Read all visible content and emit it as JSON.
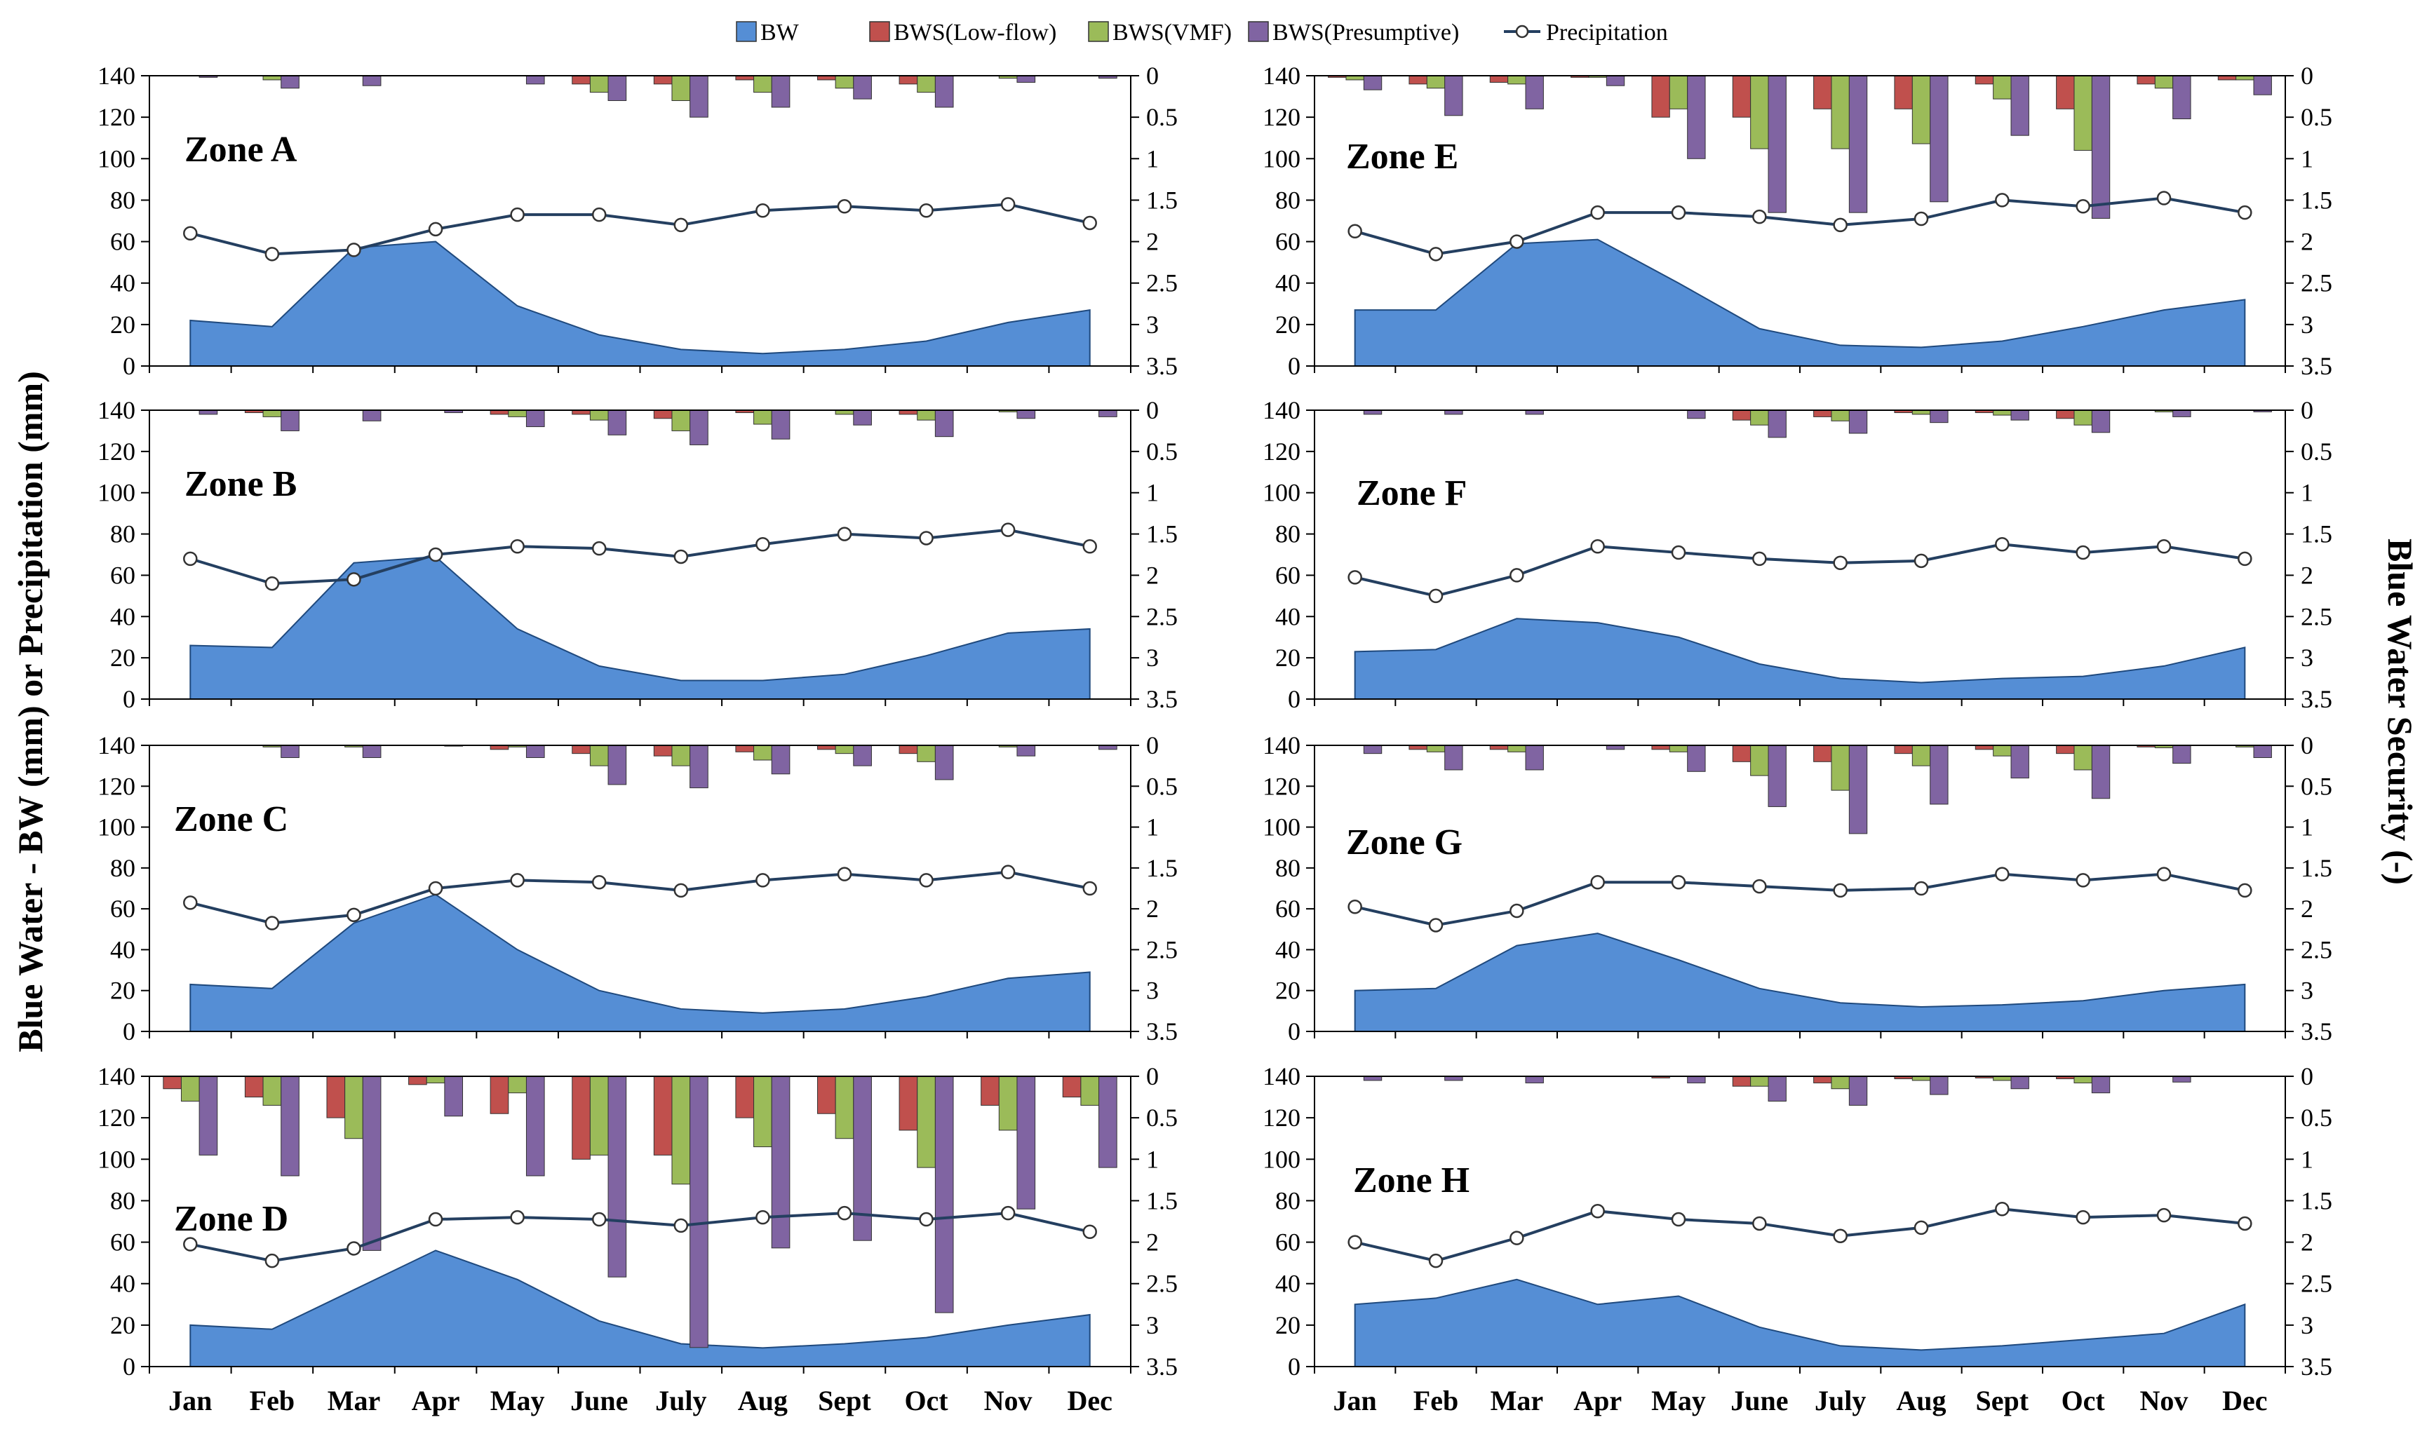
{
  "chart_data": {
    "type": "area+bar+line",
    "title": "",
    "ylabel_left": "Blue Water - BW (mm) or Precipitation (mm)",
    "ylabel_right": "Blue Water Security (-)",
    "legend": [
      "BW",
      "BWS(Low-flow)",
      "BWS(VMF)",
      "BWS(Presumptive)",
      "Precipitation"
    ],
    "colors": {
      "BW": "#558ED5",
      "BWS(Low-flow)": "#C0504D",
      "BWS(VMF)": "#9BBB59",
      "BWS(Presumptive)": "#8064A2",
      "Precipitation": "#243F60"
    },
    "months": [
      "Jan",
      "Feb",
      "Mar",
      "Apr",
      "May",
      "June",
      "July",
      "Aug",
      "Sept",
      "Oct",
      "Nov",
      "Dec"
    ],
    "ylim_left": [
      0,
      140
    ],
    "ylim_right_inverted": [
      0,
      3.5
    ],
    "left_ticks": [
      "0",
      "20",
      "40",
      "60",
      "80",
      "100",
      "120",
      "140"
    ],
    "right_ticks": [
      "0",
      "0.5",
      "1",
      "1.5",
      "2",
      "2.5",
      "3",
      "3.5"
    ],
    "panels": [
      {
        "zone": "Zone A",
        "BW": [
          22,
          19,
          57,
          60,
          29,
          15,
          8,
          6,
          8,
          12,
          21,
          27
        ],
        "Precipitation": [
          64,
          54,
          56,
          66,
          73,
          73,
          68,
          75,
          77,
          75,
          78,
          69
        ],
        "BWS_low_flow": [
          0,
          0,
          0,
          0,
          0,
          0.1,
          0.1,
          0.05,
          0.05,
          0.1,
          0,
          0
        ],
        "BWS_vmf": [
          0,
          0.05,
          0,
          0,
          0,
          0.2,
          0.3,
          0.2,
          0.15,
          0.2,
          0.03,
          0
        ],
        "BWS_presumptive": [
          0.02,
          0.15,
          0.12,
          0,
          0.1,
          0.3,
          0.5,
          0.38,
          0.28,
          0.38,
          0.08,
          0.03
        ]
      },
      {
        "zone": "Zone B",
        "BW": [
          26,
          25,
          66,
          69,
          34,
          16,
          9,
          9,
          12,
          21,
          32,
          34
        ],
        "Precipitation": [
          68,
          56,
          58,
          70,
          74,
          73,
          69,
          75,
          80,
          78,
          82,
          74
        ],
        "BWS_low_flow": [
          0,
          0.03,
          0,
          0,
          0.05,
          0.05,
          0.1,
          0.03,
          0,
          0.05,
          0,
          0
        ],
        "BWS_vmf": [
          0,
          0.08,
          0,
          0,
          0.08,
          0.12,
          0.25,
          0.17,
          0.05,
          0.12,
          0.02,
          0
        ],
        "BWS_presumptive": [
          0.05,
          0.25,
          0.13,
          0.03,
          0.2,
          0.3,
          0.42,
          0.35,
          0.18,
          0.32,
          0.1,
          0.08
        ]
      },
      {
        "zone": "Zone C",
        "BW": [
          23,
          21,
          53,
          67,
          40,
          20,
          11,
          9,
          11,
          17,
          26,
          29
        ],
        "Precipitation": [
          63,
          53,
          57,
          70,
          74,
          73,
          69,
          74,
          77,
          74,
          78,
          70
        ],
        "BWS_low_flow": [
          0,
          0,
          0,
          0,
          0.05,
          0.1,
          0.13,
          0.08,
          0.05,
          0.1,
          0,
          0
        ],
        "BWS_vmf": [
          0,
          0.02,
          0.02,
          0,
          0.02,
          0.25,
          0.25,
          0.18,
          0.1,
          0.2,
          0.02,
          0
        ],
        "BWS_presumptive": [
          0,
          0.15,
          0.15,
          0.01,
          0.15,
          0.48,
          0.52,
          0.35,
          0.25,
          0.42,
          0.13,
          0.05
        ]
      },
      {
        "zone": "Zone D",
        "BW": [
          20,
          18,
          37,
          56,
          42,
          22,
          11,
          9,
          11,
          14,
          20,
          25
        ],
        "Precipitation": [
          59,
          51,
          57,
          71,
          72,
          71,
          68,
          72,
          74,
          71,
          74,
          65
        ],
        "BWS_low_flow": [
          0.15,
          0.25,
          0.5,
          0.1,
          0.45,
          1.0,
          0.95,
          0.5,
          0.45,
          0.65,
          0.35,
          0.25
        ],
        "BWS_vmf": [
          0.3,
          0.35,
          0.75,
          0.08,
          0.2,
          0.95,
          1.3,
          0.85,
          0.75,
          1.1,
          0.65,
          0.35
        ],
        "BWS_presumptive": [
          0.95,
          1.2,
          2.1,
          0.48,
          1.2,
          2.42,
          3.27,
          2.07,
          1.98,
          2.85,
          1.6,
          1.1
        ]
      },
      {
        "zone": "Zone E",
        "BW": [
          27,
          27,
          59,
          61,
          40,
          18,
          10,
          9,
          12,
          19,
          27,
          32
        ],
        "Precipitation": [
          65,
          54,
          60,
          74,
          74,
          72,
          68,
          71,
          80,
          77,
          81,
          74
        ],
        "BWS_low_flow": [
          0.02,
          0.1,
          0.08,
          0.02,
          0.5,
          0.5,
          0.4,
          0.4,
          0.1,
          0.4,
          0.1,
          0.05
        ],
        "BWS_vmf": [
          0.05,
          0.15,
          0.1,
          0.02,
          0.4,
          0.88,
          0.88,
          0.82,
          0.28,
          0.9,
          0.15,
          0.05
        ],
        "BWS_presumptive": [
          0.17,
          0.48,
          0.4,
          0.12,
          1.0,
          1.65,
          1.65,
          1.52,
          0.72,
          1.72,
          0.52,
          0.23
        ]
      },
      {
        "zone": "Zone F",
        "BW": [
          23,
          24,
          39,
          37,
          30,
          17,
          10,
          8,
          10,
          11,
          16,
          25
        ],
        "Precipitation": [
          59,
          50,
          60,
          74,
          71,
          68,
          66,
          67,
          75,
          71,
          74,
          68
        ],
        "BWS_low_flow": [
          0,
          0,
          0,
          0,
          0,
          0.12,
          0.08,
          0.03,
          0.03,
          0.1,
          0,
          0
        ],
        "BWS_vmf": [
          0,
          0,
          0,
          0,
          0,
          0.18,
          0.13,
          0.05,
          0.06,
          0.18,
          0.02,
          0
        ],
        "BWS_presumptive": [
          0.05,
          0.05,
          0.05,
          0,
          0.1,
          0.33,
          0.28,
          0.15,
          0.12,
          0.27,
          0.08,
          0.02
        ]
      },
      {
        "zone": "Zone G",
        "BW": [
          20,
          21,
          42,
          48,
          35,
          21,
          14,
          12,
          13,
          15,
          20,
          23
        ],
        "Precipitation": [
          61,
          52,
          59,
          73,
          73,
          71,
          69,
          70,
          77,
          74,
          77,
          69
        ],
        "BWS_low_flow": [
          0,
          0.05,
          0.05,
          0,
          0.05,
          0.2,
          0.2,
          0.1,
          0.05,
          0.1,
          0.02,
          0
        ],
        "BWS_vmf": [
          0,
          0.08,
          0.08,
          0,
          0.08,
          0.37,
          0.55,
          0.25,
          0.13,
          0.3,
          0.03,
          0.02
        ],
        "BWS_presumptive": [
          0.1,
          0.3,
          0.3,
          0.05,
          0.32,
          0.75,
          1.08,
          0.72,
          0.4,
          0.65,
          0.22,
          0.15
        ]
      },
      {
        "zone": "Zone H",
        "BW": [
          30,
          33,
          42,
          30,
          34,
          19,
          10,
          8,
          10,
          13,
          16,
          30
        ],
        "Precipitation": [
          60,
          51,
          62,
          75,
          71,
          69,
          63,
          67,
          76,
          72,
          73,
          69
        ],
        "BWS_low_flow": [
          0,
          0,
          0,
          0,
          0.02,
          0.12,
          0.08,
          0.03,
          0.02,
          0.03,
          0,
          0
        ],
        "BWS_vmf": [
          0,
          0,
          0,
          0,
          0,
          0.12,
          0.15,
          0.05,
          0.05,
          0.08,
          0,
          0
        ],
        "BWS_presumptive": [
          0.05,
          0.05,
          0.08,
          0,
          0.08,
          0.3,
          0.35,
          0.22,
          0.15,
          0.2,
          0.07,
          0
        ]
      }
    ]
  }
}
